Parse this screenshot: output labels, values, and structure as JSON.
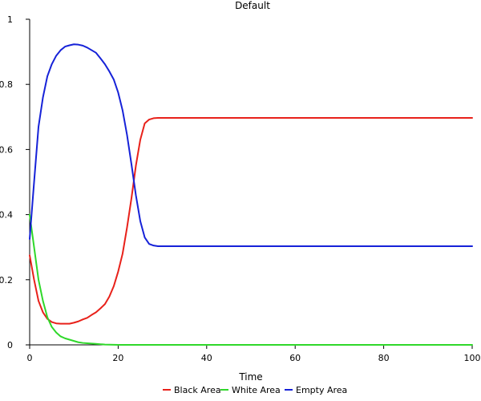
{
  "chart_data": {
    "type": "line",
    "title": "Default",
    "xlabel": "Time",
    "ylabel": "",
    "xlim": [
      0,
      100
    ],
    "ylim": [
      0,
      1
    ],
    "x_ticks": [
      0,
      20,
      40,
      60,
      80,
      100
    ],
    "x_tick_labels": [
      "0",
      "20",
      "40",
      "60",
      "80",
      "100"
    ],
    "y_ticks": [
      0,
      0.2,
      0.4,
      0.6,
      0.8,
      1
    ],
    "y_tick_labels": [
      "0",
      "0.2",
      "0.4",
      "0.6",
      "0.8",
      "1"
    ],
    "grid": false,
    "legend_position": "bottom",
    "series": [
      {
        "name": "Black Area",
        "color": "#e8211a",
        "points": [
          [
            0,
            0.275
          ],
          [
            1,
            0.2
          ],
          [
            2,
            0.135
          ],
          [
            3,
            0.1
          ],
          [
            4,
            0.08
          ],
          [
            5,
            0.07
          ],
          [
            6,
            0.066
          ],
          [
            7,
            0.065
          ],
          [
            8,
            0.065
          ],
          [
            9,
            0.065
          ],
          [
            10,
            0.068
          ],
          [
            11,
            0.072
          ],
          [
            12,
            0.078
          ],
          [
            13,
            0.083
          ],
          [
            14,
            0.092
          ],
          [
            15,
            0.1
          ],
          [
            16,
            0.112
          ],
          [
            17,
            0.125
          ],
          [
            18,
            0.148
          ],
          [
            19,
            0.18
          ],
          [
            20,
            0.225
          ],
          [
            21,
            0.28
          ],
          [
            22,
            0.36
          ],
          [
            23,
            0.45
          ],
          [
            24,
            0.55
          ],
          [
            25,
            0.63
          ],
          [
            26,
            0.68
          ],
          [
            27,
            0.692
          ],
          [
            28,
            0.696
          ],
          [
            29,
            0.697
          ],
          [
            30,
            0.697
          ],
          [
            40,
            0.697
          ],
          [
            50,
            0.697
          ],
          [
            60,
            0.697
          ],
          [
            70,
            0.697
          ],
          [
            80,
            0.697
          ],
          [
            90,
            0.697
          ],
          [
            100,
            0.697
          ]
        ]
      },
      {
        "name": "White Area",
        "color": "#2fd82a",
        "points": [
          [
            0,
            0.4
          ],
          [
            1,
            0.3
          ],
          [
            2,
            0.2
          ],
          [
            3,
            0.135
          ],
          [
            4,
            0.085
          ],
          [
            5,
            0.055
          ],
          [
            6,
            0.038
          ],
          [
            7,
            0.026
          ],
          [
            8,
            0.02
          ],
          [
            9,
            0.016
          ],
          [
            10,
            0.012
          ],
          [
            11,
            0.008
          ],
          [
            12,
            0.006
          ],
          [
            13,
            0.005
          ],
          [
            14,
            0.004
          ],
          [
            15,
            0.003
          ],
          [
            16,
            0.002
          ],
          [
            17,
            0.001
          ],
          [
            18,
            0.0005
          ],
          [
            20,
            0.0
          ],
          [
            30,
            0.0
          ],
          [
            40,
            0.0
          ],
          [
            50,
            0.0
          ],
          [
            60,
            0.0
          ],
          [
            70,
            0.0
          ],
          [
            80,
            0.0
          ],
          [
            90,
            0.0
          ],
          [
            100,
            0.0
          ]
        ]
      },
      {
        "name": "Empty Area",
        "color": "#1622d8",
        "points": [
          [
            0,
            0.325
          ],
          [
            1,
            0.5
          ],
          [
            2,
            0.67
          ],
          [
            3,
            0.76
          ],
          [
            4,
            0.825
          ],
          [
            5,
            0.862
          ],
          [
            6,
            0.888
          ],
          [
            7,
            0.905
          ],
          [
            8,
            0.916
          ],
          [
            9,
            0.92
          ],
          [
            10,
            0.923
          ],
          [
            11,
            0.922
          ],
          [
            12,
            0.919
          ],
          [
            13,
            0.913
          ],
          [
            14,
            0.905
          ],
          [
            15,
            0.897
          ],
          [
            16,
            0.88
          ],
          [
            17,
            0.862
          ],
          [
            18,
            0.84
          ],
          [
            19,
            0.815
          ],
          [
            20,
            0.775
          ],
          [
            21,
            0.72
          ],
          [
            22,
            0.645
          ],
          [
            23,
            0.555
          ],
          [
            24,
            0.46
          ],
          [
            25,
            0.38
          ],
          [
            26,
            0.33
          ],
          [
            27,
            0.31
          ],
          [
            28,
            0.305
          ],
          [
            29,
            0.303
          ],
          [
            30,
            0.303
          ],
          [
            40,
            0.303
          ],
          [
            50,
            0.303
          ],
          [
            60,
            0.303
          ],
          [
            70,
            0.303
          ],
          [
            80,
            0.303
          ],
          [
            90,
            0.303
          ],
          [
            100,
            0.303
          ]
        ]
      }
    ]
  }
}
